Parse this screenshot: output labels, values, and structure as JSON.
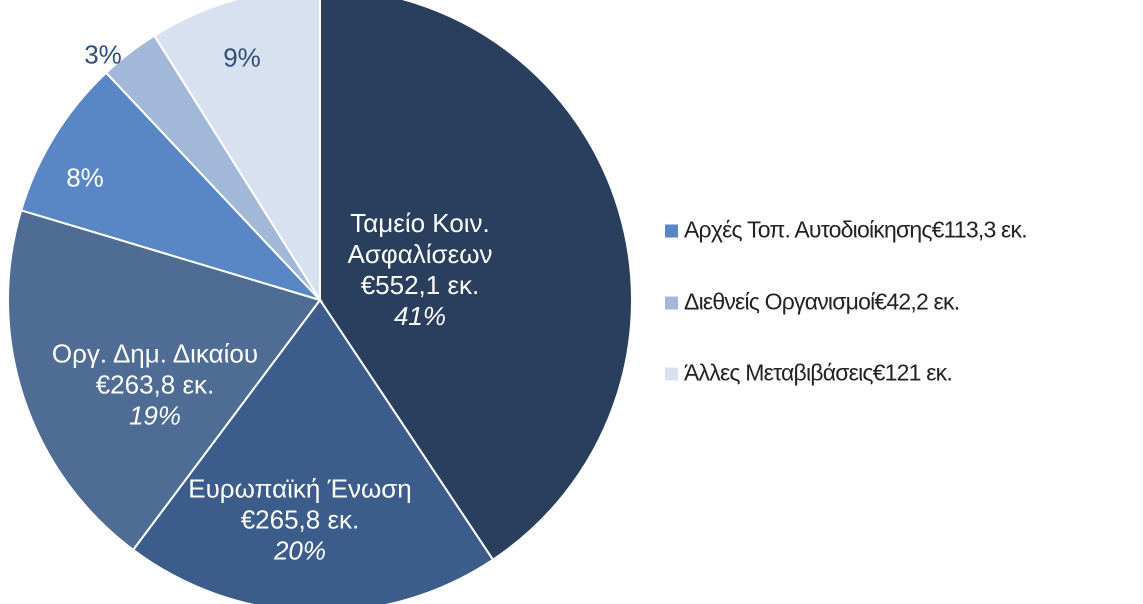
{
  "chart_data": {
    "type": "pie",
    "categories": [
      "Ταμείο Κοιν. Ασφαλίσεων",
      "Ευρωπαϊκή Ένωση",
      "Οργ. Δημ. Δικαίου",
      "Αρχές Τοπ. Αυτοδιοίκησης",
      "Διεθνείς Οργανισμοί",
      "Άλλες Μεταβιβάσεις"
    ],
    "values": [
      552.1,
      265.8,
      263.8,
      113.3,
      42.2,
      121
    ],
    "value_labels": [
      "€552,1 εκ.",
      "€265,8 εκ.",
      "€263,8 εκ.",
      "€113,3 εκ.",
      "€42,2 εκ.",
      "€121 εκ."
    ],
    "percent_labels": [
      "41%",
      "20%",
      "19%",
      "8%",
      "3%",
      "9%"
    ],
    "colors": [
      "#2a3e5d",
      "#3c5d8b",
      "#4f6c95",
      "#5987c6",
      "#a2b8d8",
      "#d8e1f0"
    ],
    "legend": true
  }
}
